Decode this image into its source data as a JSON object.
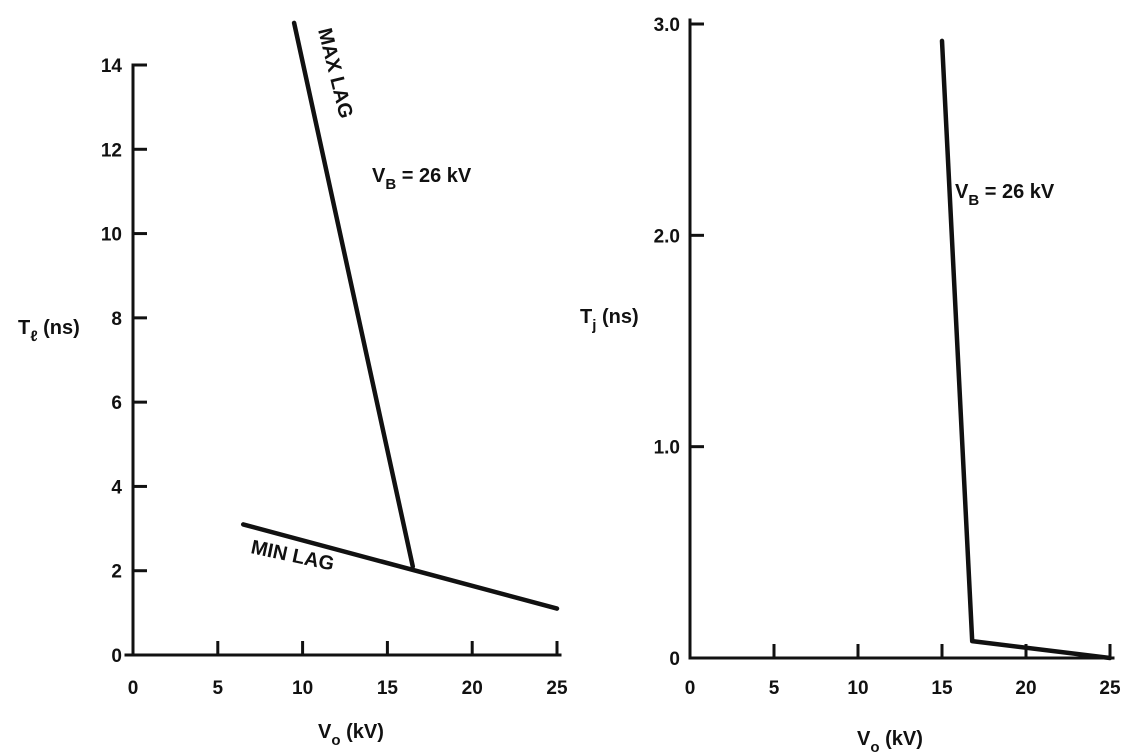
{
  "chart_data": [
    {
      "type": "line",
      "xlabel": {
        "main": "V",
        "sub": "o",
        "unit": "(kV)"
      },
      "ylabel": {
        "main": "T",
        "sub": "ℓ",
        "unit": "(ns)"
      },
      "xlim": [
        0,
        25
      ],
      "ylim": [
        0,
        14
      ],
      "x_ticks": [
        0,
        5,
        10,
        15,
        20,
        25
      ],
      "y_ticks": [
        0,
        2,
        4,
        6,
        8,
        10,
        12,
        14
      ],
      "series": [
        {
          "name": "MAX LAG",
          "x": [
            9.5,
            16.5
          ],
          "y": [
            15.0,
            2.1
          ]
        },
        {
          "name": "MIN LAG",
          "x": [
            6.5,
            25.0
          ],
          "y": [
            3.1,
            1.1
          ]
        }
      ],
      "annotation": {
        "main": "V",
        "sub": "B",
        "rest": " = 26 kV"
      }
    },
    {
      "type": "line",
      "xlabel": {
        "main": "V",
        "sub": "o",
        "unit": "(kV)"
      },
      "ylabel": {
        "main": "T",
        "sub": "j",
        "unit": "(ns)"
      },
      "xlim": [
        0,
        25
      ],
      "ylim": [
        0,
        3.0
      ],
      "x_ticks": [
        0,
        5,
        10,
        15,
        20,
        25
      ],
      "y_ticks": [
        0,
        1.0,
        2.0,
        3.0
      ],
      "y_tick_labels": [
        "0",
        "1.0",
        "2.0",
        "3.0"
      ],
      "series": [
        {
          "x": [
            15.0,
            16.8,
            25.0
          ],
          "y": [
            2.92,
            0.08,
            0.0
          ]
        }
      ],
      "annotation": {
        "main": "V",
        "sub": "B",
        "rest": " = 26 kV"
      }
    }
  ]
}
